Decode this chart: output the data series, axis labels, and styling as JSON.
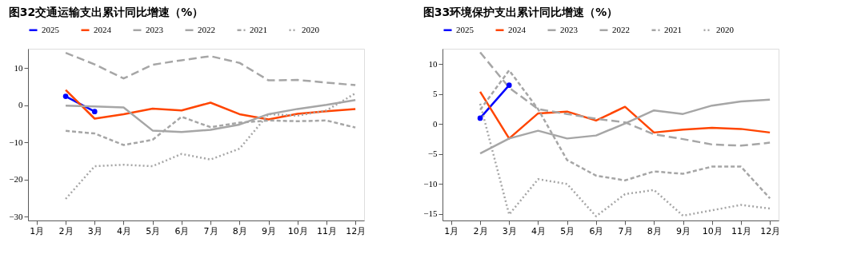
{
  "chart_data": [
    {
      "type": "line",
      "title": "图32交通运输支出累计同比增速（%）",
      "categories": [
        "1月",
        "2月",
        "3月",
        "4月",
        "5月",
        "6月",
        "7月",
        "8月",
        "9月",
        "10月",
        "11月",
        "12月"
      ],
      "ylim": [
        -31,
        15.2
      ],
      "yticks": [
        -30,
        -20,
        -10,
        0,
        10
      ],
      "grid": false,
      "legend": "top",
      "series": [
        {
          "name": "2025",
          "color": "#0000ff",
          "line_style": "solid",
          "marker": "circle",
          "values": [
            null,
            2.4,
            -1.7,
            null,
            null,
            null,
            null,
            null,
            null,
            null,
            null,
            null
          ]
        },
        {
          "name": "2024",
          "color": "#ff4500",
          "line_style": "solid",
          "marker": "none",
          "values": [
            null,
            4.1,
            -3.6,
            -2.4,
            -0.9,
            -1.4,
            0.7,
            -2.4,
            -3.8,
            -2.3,
            -1.6,
            -1.0
          ]
        },
        {
          "name": "2023",
          "color": "#a6a6a6",
          "line_style": "solid",
          "marker": "none",
          "values": [
            null,
            -0.1,
            -0.3,
            -0.6,
            -6.8,
            -7.2,
            -6.6,
            -5.2,
            -2.4,
            -1.0,
            0.1,
            1.4
          ]
        },
        {
          "name": "2022",
          "color": "#a6a6a6",
          "line_style": "dashed",
          "marker": "none",
          "values": [
            null,
            14.1,
            11.0,
            7.2,
            10.9,
            12.1,
            13.2,
            11.4,
            6.7,
            6.8,
            6.1,
            5.4
          ]
        },
        {
          "name": "2021",
          "color": "#a6a6a6",
          "line_style": "dashed",
          "marker": "none",
          "values": [
            null,
            -6.9,
            -7.6,
            -10.7,
            -9.3,
            -3.1,
            -5.9,
            -4.7,
            -4.1,
            -4.3,
            -4.1,
            -6.0
          ]
        },
        {
          "name": "2020",
          "color": "#a6a6a6",
          "line_style": "dotted",
          "marker": "none",
          "values": [
            null,
            -25.2,
            -16.4,
            -16.0,
            -16.4,
            -13.1,
            -14.6,
            -11.7,
            -2.4,
            -2.8,
            -1.4,
            3.2
          ]
        }
      ]
    },
    {
      "type": "line",
      "title": "图33环境保护支出累计同比增速（%）",
      "categories": [
        "1月",
        "2月",
        "3月",
        "4月",
        "5月",
        "6月",
        "7月",
        "8月",
        "9月",
        "10月",
        "11月",
        "12月"
      ],
      "ylim": [
        -16.1,
        12.6
      ],
      "yticks": [
        -15,
        -10,
        -5,
        0,
        5,
        10
      ],
      "grid": false,
      "legend": "top",
      "series": [
        {
          "name": "2025",
          "color": "#0000ff",
          "line_style": "solid",
          "marker": "circle",
          "values": [
            null,
            1.0,
            6.5,
            null,
            null,
            null,
            null,
            null,
            null,
            null,
            null,
            null
          ]
        },
        {
          "name": "2024",
          "color": "#ff4500",
          "line_style": "solid",
          "marker": "none",
          "values": [
            null,
            5.4,
            -2.4,
            1.8,
            2.1,
            0.6,
            2.9,
            -1.4,
            -0.9,
            -0.6,
            -0.8,
            -1.4
          ]
        },
        {
          "name": "2023",
          "color": "#a6a6a6",
          "line_style": "solid",
          "marker": "none",
          "values": [
            null,
            -4.9,
            -2.4,
            -1.1,
            -2.4,
            -1.9,
            0.1,
            2.3,
            1.7,
            3.1,
            3.8,
            4.1
          ]
        },
        {
          "name": "2022",
          "color": "#a6a6a6",
          "line_style": "dashed",
          "marker": "none",
          "values": [
            null,
            12.0,
            6.1,
            2.5,
            1.7,
            0.9,
            0.3,
            -1.7,
            -2.5,
            -3.4,
            -3.6,
            -3.1
          ]
        },
        {
          "name": "2021",
          "color": "#a6a6a6",
          "line_style": "dashed",
          "marker": "none",
          "values": [
            null,
            2.4,
            9.0,
            2.5,
            -6.0,
            -8.6,
            -9.4,
            -7.9,
            -8.3,
            -7.1,
            -7.1,
            -12.4
          ]
        },
        {
          "name": "2020",
          "color": "#a6a6a6",
          "line_style": "dotted",
          "marker": "none",
          "values": [
            null,
            3.4,
            -15.1,
            -9.2,
            -10.0,
            -15.4,
            -11.7,
            -11.0,
            -15.3,
            -14.4,
            -13.5,
            -14.1
          ]
        }
      ]
    }
  ]
}
